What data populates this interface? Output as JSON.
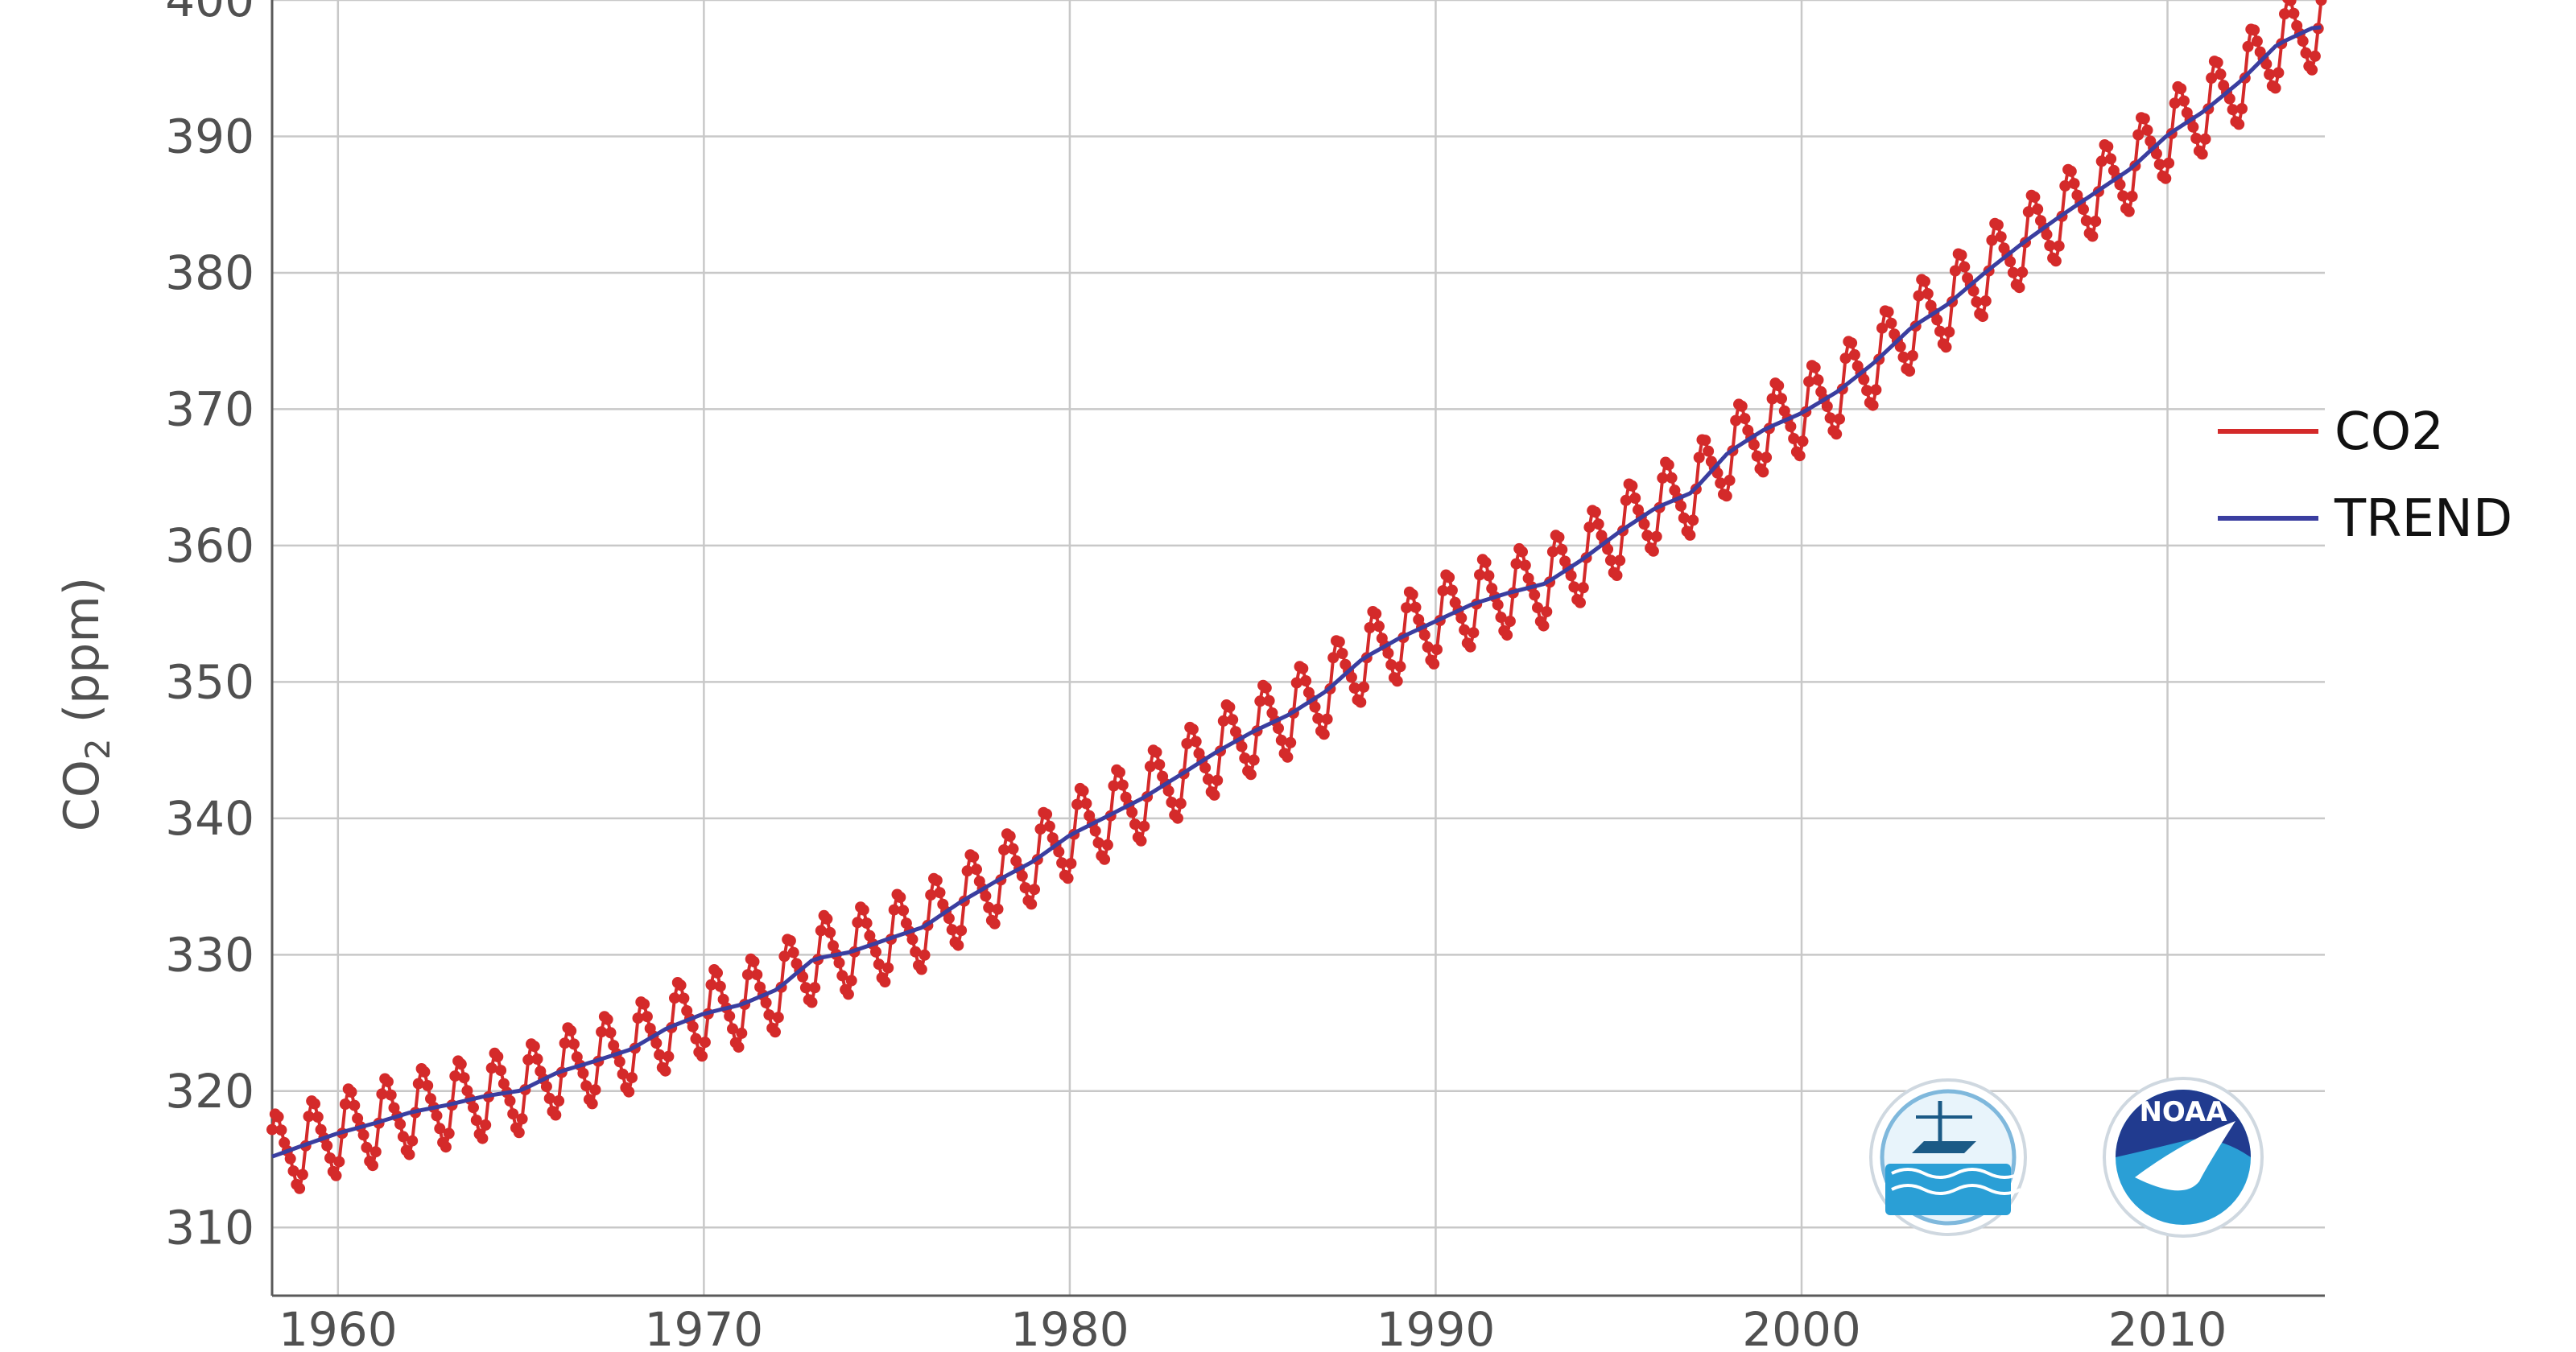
{
  "chart_data": {
    "type": "line",
    "xlabel": "",
    "ylabel_main": "CO",
    "ylabel_sub": "2",
    "ylabel_rest": " (ppm)",
    "xlim": [
      1958.2,
      2014.3
    ],
    "ylim": [
      305,
      400
    ],
    "x_ticks": [
      1960,
      1970,
      1980,
      1990,
      2000,
      2010
    ],
    "y_ticks": [
      310,
      320,
      330,
      340,
      350,
      360,
      370,
      380,
      390,
      400
    ],
    "x_tick_labels": [
      "1960",
      "1970",
      "1980",
      "1990",
      "2000",
      "2010"
    ],
    "y_tick_labels": [
      "310",
      "320",
      "330",
      "340",
      "350",
      "360",
      "370",
      "380",
      "390",
      "400"
    ],
    "grid": true,
    "legend_position": "right",
    "series": [
      {
        "name": "CO2",
        "color": "#d42a2a"
      },
      {
        "name": "TREND",
        "color": "#3a3ea0"
      }
    ],
    "trend_annual": {
      "years": [
        1958,
        1959,
        1960,
        1961,
        1962,
        1963,
        1964,
        1965,
        1966,
        1967,
        1968,
        1969,
        1970,
        1971,
        1972,
        1973,
        1974,
        1975,
        1976,
        1977,
        1978,
        1979,
        1980,
        1981,
        1982,
        1983,
        1984,
        1985,
        1986,
        1987,
        1988,
        1989,
        1990,
        1991,
        1992,
        1993,
        1994,
        1995,
        1996,
        1997,
        1998,
        1999,
        2000,
        2001,
        2002,
        2003,
        2004,
        2005,
        2006,
        2007,
        2008,
        2009,
        2010,
        2011,
        2012,
        2013,
        2014
      ],
      "ppm": [
        315.0,
        315.97,
        316.91,
        317.64,
        318.45,
        318.99,
        319.62,
        320.04,
        321.37,
        322.18,
        323.05,
        324.62,
        325.68,
        326.32,
        327.45,
        329.68,
        330.19,
        331.12,
        332.03,
        333.84,
        335.41,
        336.84,
        338.76,
        340.12,
        341.48,
        343.15,
        344.85,
        346.35,
        347.61,
        349.31,
        351.69,
        353.2,
        354.45,
        355.7,
        356.54,
        357.21,
        358.96,
        360.97,
        362.74,
        363.88,
        366.84,
        368.54,
        369.71,
        371.32,
        373.45,
        375.98,
        377.7,
        379.98,
        382.09,
        384.02,
        385.83,
        387.64,
        390.1,
        391.85,
        394.06,
        396.74,
        398.0
      ]
    },
    "seasonal_amplitude_ppm": 3.2,
    "logos": [
      "institute-seal",
      "noaa"
    ],
    "logo_text": "NOAA"
  }
}
